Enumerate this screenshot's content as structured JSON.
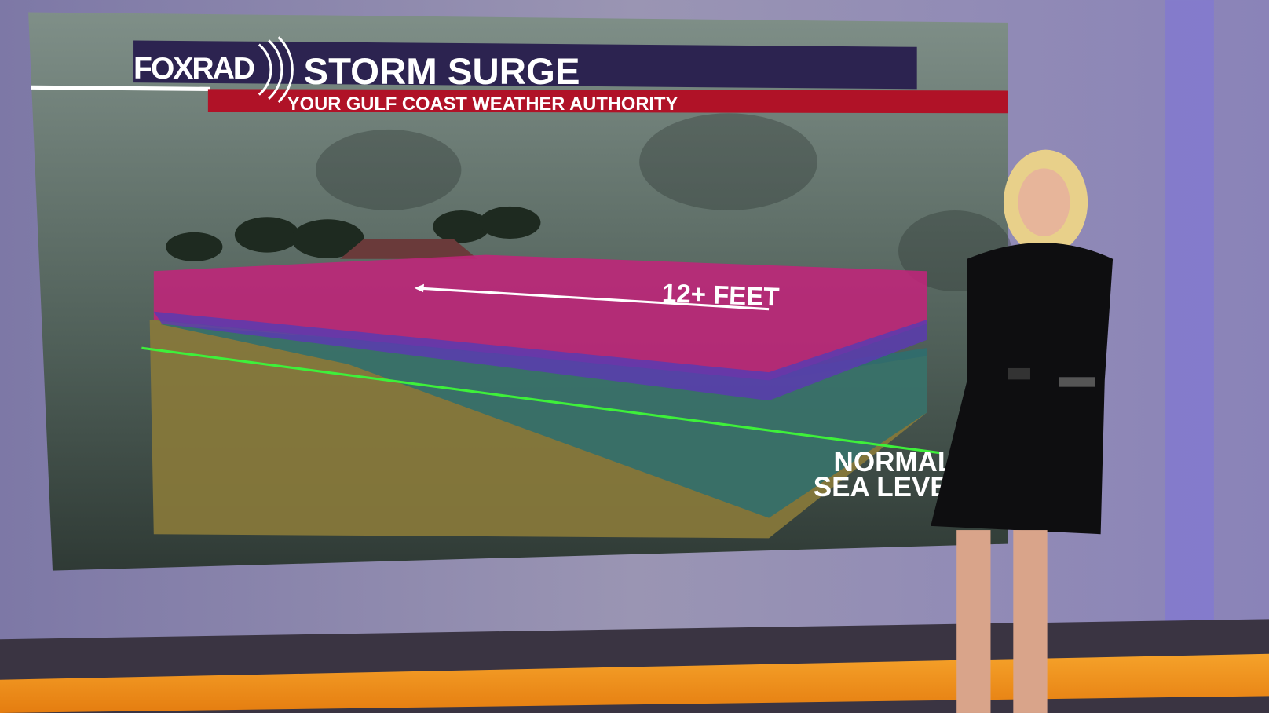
{
  "graphic": {
    "logo": "FOXRAD",
    "title": "STORM SURGE",
    "subtitle": "YOUR GULF COAST WEATHER AUTHORITY",
    "surge_label": "12+ FEET",
    "sea_level_label_line1": "NORMAL",
    "sea_level_label_line2": "SEA LEVEL"
  },
  "colors": {
    "title_bar": "#2c2350",
    "subtitle_bar": "#b01227",
    "surge_layer": "#c0247a",
    "sea_level_line": "#3ef03a",
    "sand": "#8a7a3a",
    "stage_floor_accent": "#f39a1a"
  }
}
